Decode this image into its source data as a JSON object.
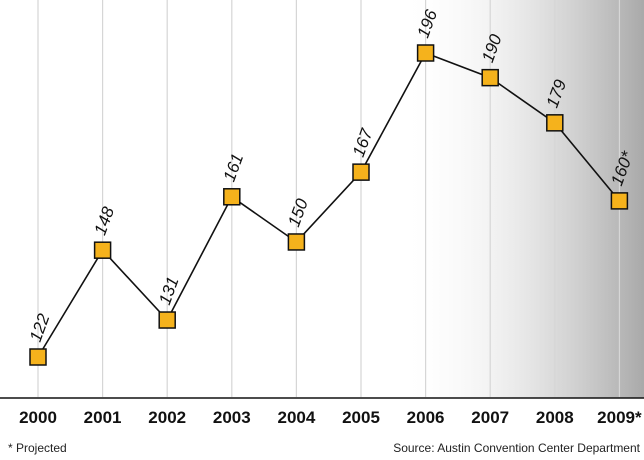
{
  "chart_data": {
    "type": "line",
    "categories": [
      "2000",
      "2001",
      "2002",
      "2003",
      "2004",
      "2005",
      "2006",
      "2007",
      "2008",
      "2009*"
    ],
    "values": [
      122,
      148,
      131,
      161,
      150,
      167,
      196,
      190,
      179,
      160
    ],
    "value_labels": [
      "122",
      "148",
      "131",
      "161",
      "150",
      "167",
      "196",
      "190",
      "179",
      "160*"
    ],
    "color": "#f5b21c",
    "grid": true,
    "footnote": "* Projected",
    "source": "Source: Austin Convention Center Department"
  }
}
